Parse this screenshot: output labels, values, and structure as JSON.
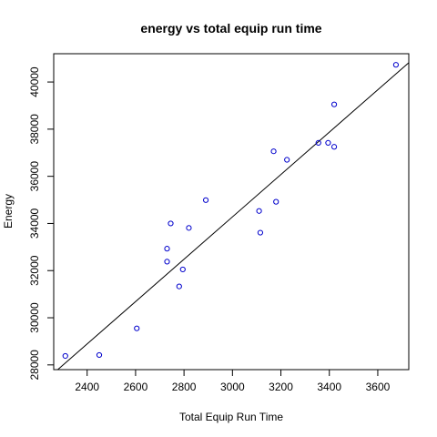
{
  "chart_data": {
    "type": "scatter",
    "title": "energy vs total equip run time",
    "xlabel": "Total Equip Run Time",
    "ylabel": "Energy",
    "xlim": [
      2262,
      3728
    ],
    "ylim": [
      27800,
      41200
    ],
    "x_ticks": [
      2400,
      2600,
      2800,
      3000,
      3200,
      3400,
      3600
    ],
    "y_ticks": [
      28000,
      30000,
      32000,
      34000,
      36000,
      38000,
      40000
    ],
    "grid": false,
    "legend": "none",
    "point_color": "#0000cc",
    "line_color": "#000000",
    "points": [
      {
        "x": 2310,
        "y": 28380
      },
      {
        "x": 2450,
        "y": 28420
      },
      {
        "x": 2605,
        "y": 29550
      },
      {
        "x": 2730,
        "y": 32930
      },
      {
        "x": 2730,
        "y": 32380
      },
      {
        "x": 2745,
        "y": 34000
      },
      {
        "x": 2780,
        "y": 31330
      },
      {
        "x": 2795,
        "y": 32050
      },
      {
        "x": 2820,
        "y": 33810
      },
      {
        "x": 2890,
        "y": 34990
      },
      {
        "x": 3110,
        "y": 34530
      },
      {
        "x": 3115,
        "y": 33610
      },
      {
        "x": 3170,
        "y": 37060
      },
      {
        "x": 3180,
        "y": 34920
      },
      {
        "x": 3225,
        "y": 36700
      },
      {
        "x": 3355,
        "y": 37420
      },
      {
        "x": 3395,
        "y": 37420
      },
      {
        "x": 3420,
        "y": 37250
      },
      {
        "x": 3420,
        "y": 39050
      },
      {
        "x": 3675,
        "y": 40730
      }
    ],
    "regression_line": {
      "x": [
        2262,
        3728
      ],
      "y": [
        27650,
        40820
      ]
    }
  }
}
